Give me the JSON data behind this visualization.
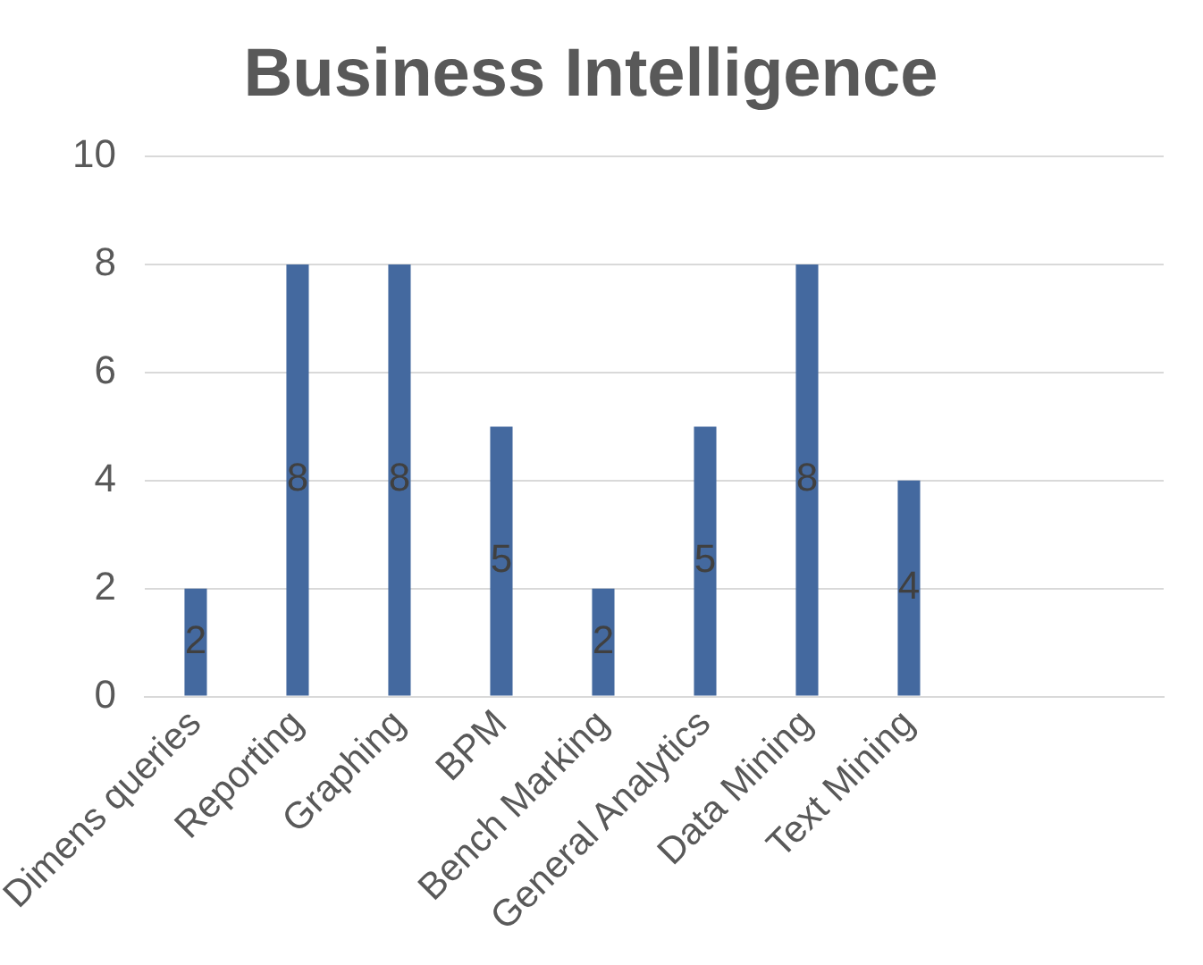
{
  "chart_data": {
    "type": "bar",
    "title": "Business Intelligence",
    "categories": [
      "Dimens queries",
      "Reporting",
      "Graphing",
      "BPM",
      "Bench Marking",
      "General Analytics",
      "Data Mining",
      "Text Mining",
      null,
      null
    ],
    "values": [
      2,
      8,
      8,
      5,
      2,
      5,
      8,
      4,
      null,
      null
    ],
    "color": "#44699f",
    "ylim": [
      0,
      10
    ],
    "yticks": [
      0,
      2,
      4,
      6,
      8,
      10
    ],
    "grid": "y",
    "data_labels": true,
    "legend": false
  }
}
